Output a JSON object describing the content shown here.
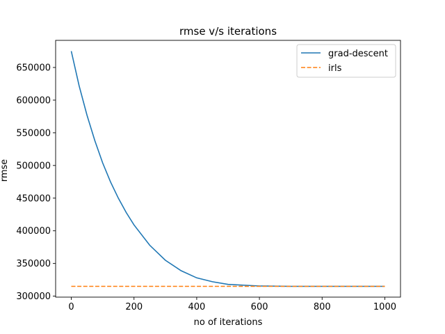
{
  "chart_data": {
    "type": "line",
    "title": "rmse v/s iterations",
    "xlabel": "no of iterations",
    "ylabel": "rmse",
    "xlim": [
      -50,
      1050
    ],
    "ylim": [
      298500,
      691500
    ],
    "xticks": [
      0,
      200,
      400,
      600,
      800,
      1000
    ],
    "yticks": [
      300000,
      350000,
      400000,
      450000,
      500000,
      550000,
      600000,
      650000
    ],
    "grid": false,
    "legend_position": "top-right",
    "series": [
      {
        "name": "grad-descent",
        "color": "#1f77b4",
        "style": "solid",
        "x": [
          0,
          25,
          50,
          75,
          100,
          125,
          150,
          175,
          200,
          250,
          300,
          350,
          400,
          450,
          500,
          600,
          700,
          800,
          900,
          1000
        ],
        "y": [
          675000,
          622000,
          577000,
          538000,
          504000,
          475000,
          450000,
          428000,
          409000,
          378000,
          355000,
          339000,
          328000,
          322000,
          318000,
          315500,
          315000,
          315000,
          315000,
          315000
        ]
      },
      {
        "name": "irls",
        "color": "#ff7f0e",
        "style": "dashed",
        "x": [
          0,
          1000
        ],
        "y": [
          315000,
          315000
        ]
      }
    ]
  }
}
